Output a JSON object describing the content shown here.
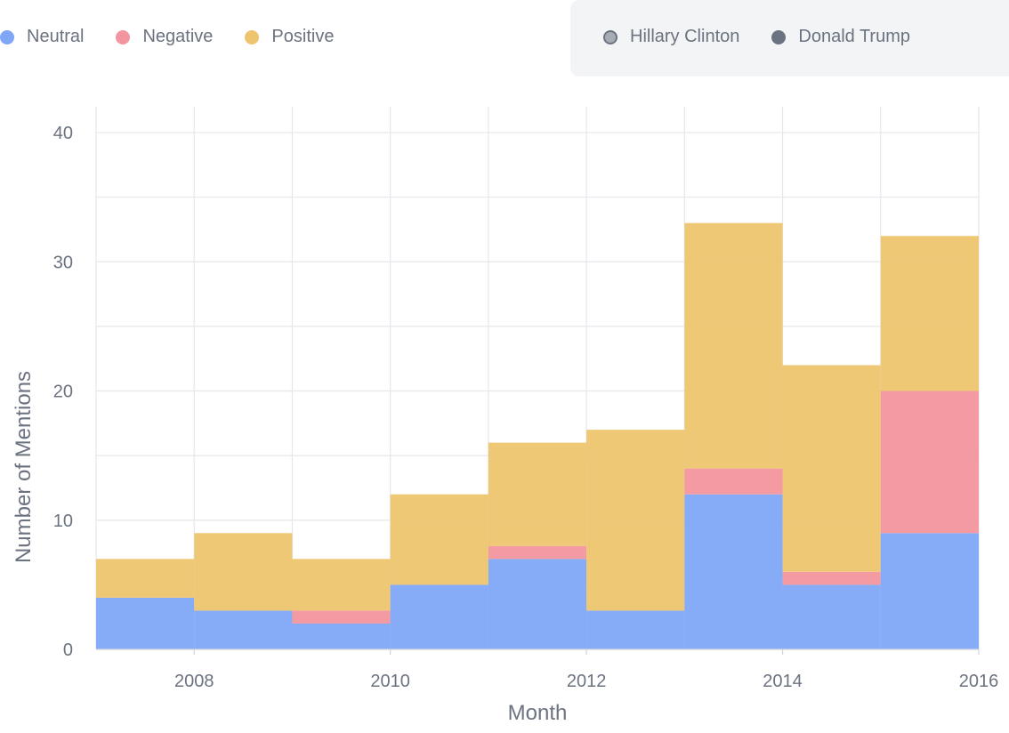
{
  "legend": {
    "sentiment": [
      {
        "label": "Neutral",
        "color": "#7fa6f7"
      },
      {
        "label": "Negative",
        "color": "#f2959e"
      },
      {
        "label": "Positive",
        "color": "#eec56f"
      }
    ],
    "people": [
      {
        "label": "Hillary Clinton",
        "color": "#9ca3af"
      },
      {
        "label": "Donald Trump",
        "color": "#6b7280"
      }
    ]
  },
  "chart_data": {
    "type": "bar",
    "stacked": true,
    "step": true,
    "xlabel": "Month",
    "ylabel": "Number of Mentions",
    "xlim": [
      2007,
      2016
    ],
    "ylim": [
      0,
      42
    ],
    "x_ticks": [
      "2008",
      "2010",
      "2012",
      "2014",
      "2016"
    ],
    "y_ticks": [
      "0",
      "10",
      "20",
      "30",
      "40"
    ],
    "bins": [
      {
        "start": 2007,
        "end": 2008
      },
      {
        "start": 2008,
        "end": 2009
      },
      {
        "start": 2009,
        "end": 2010
      },
      {
        "start": 2010,
        "end": 2011
      },
      {
        "start": 2011,
        "end": 2012
      },
      {
        "start": 2012,
        "end": 2013
      },
      {
        "start": 2013,
        "end": 2014
      },
      {
        "start": 2014,
        "end": 2015
      },
      {
        "start": 2015,
        "end": 2016
      }
    ],
    "series": [
      {
        "name": "Neutral",
        "color": "#7fa6f7",
        "values": [
          4,
          3,
          2,
          5,
          7,
          3,
          12,
          5,
          9
        ]
      },
      {
        "name": "Negative",
        "color": "#f2959e",
        "values": [
          0,
          0,
          1,
          0,
          1,
          0,
          2,
          1,
          11
        ]
      },
      {
        "name": "Positive",
        "color": "#eec56f",
        "values": [
          3,
          6,
          4,
          7,
          8,
          14,
          19,
          16,
          12
        ]
      }
    ],
    "grid": true
  }
}
